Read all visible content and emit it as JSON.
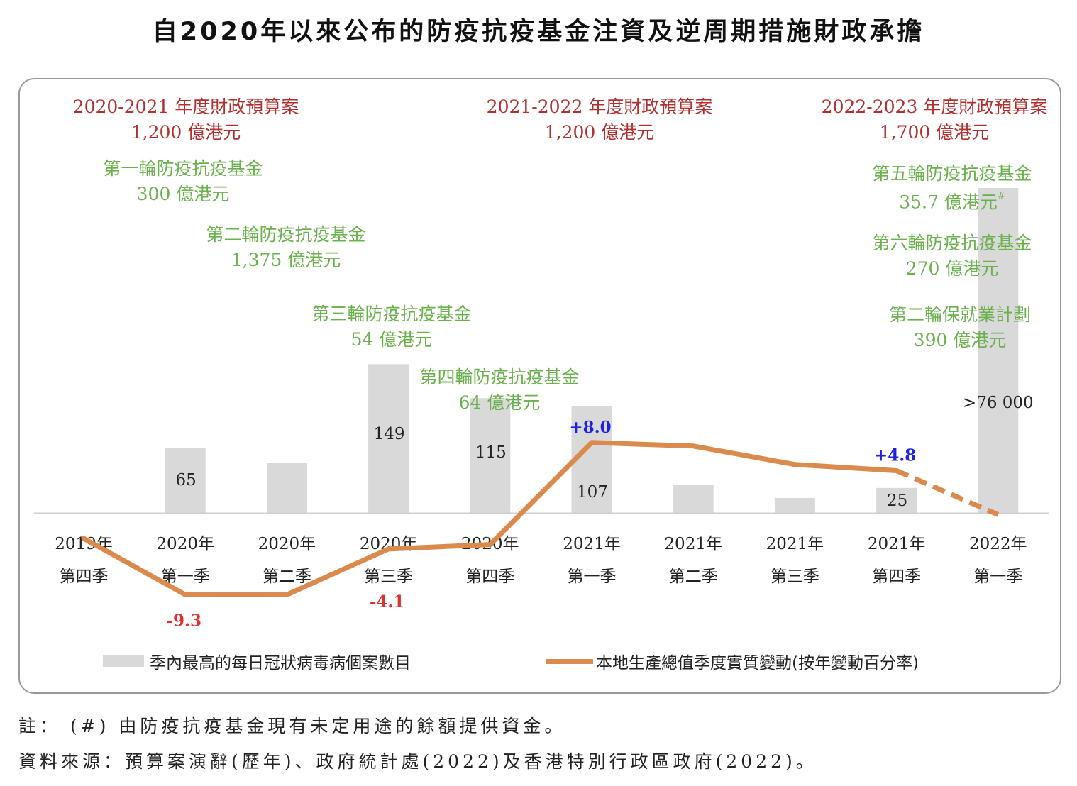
{
  "title": "自2020年以來公布的防疫抗疫基金注資及逆周期措施財政承擔",
  "annotations": {
    "budgets": [
      {
        "label": "2020-2021 年度財政預算案",
        "amount": "1,200 億港元"
      },
      {
        "label": "2021-2022 年度財政預算案",
        "amount": "1,200 億港元"
      },
      {
        "label": "2022-2023 年度財政預算案",
        "amount": "1,700 億港元"
      }
    ],
    "funds": [
      {
        "label": "第一輪防疫抗疫基金",
        "amount": "300 億港元"
      },
      {
        "label": "第二輪防疫抗疫基金",
        "amount": "1,375 億港元"
      },
      {
        "label": "第三輪防疫抗疫基金",
        "amount": "54 億港元"
      },
      {
        "label": "第四輪防疫抗疫基金",
        "amount": "64 億港元"
      },
      {
        "label": "第五輪防疫抗疫基金",
        "amount": "35.7 億港元",
        "mark": "#"
      },
      {
        "label": "第六輪防疫抗疫基金",
        "amount": "270 億港元"
      },
      {
        "label": "第二輪保就業計劃",
        "amount": "390 億港元"
      }
    ]
  },
  "chart_data": {
    "type": "bar+line",
    "categories": [
      [
        "2019年",
        "第四季"
      ],
      [
        "2020年",
        "第一季"
      ],
      [
        "2020年",
        "第二季"
      ],
      [
        "2020年",
        "第三季"
      ],
      [
        "2020年",
        "第四季"
      ],
      [
        "2021年",
        "第一季"
      ],
      [
        "2021年",
        "第二季"
      ],
      [
        "2021年",
        "第三季"
      ],
      [
        "2021年",
        "第四季"
      ],
      [
        "2022年",
        "第一季"
      ]
    ],
    "series": [
      {
        "name": "季內最高的每日冠狀病毒病個案數目",
        "kind": "bar",
        "values": [
          0,
          65,
          50,
          149,
          115,
          107,
          28,
          15,
          25,
          76000
        ],
        "value_labels": [
          "",
          "65",
          "",
          "149",
          "115",
          "107",
          "",
          "",
          "25",
          ">76 000"
        ],
        "axis_max": 160
      },
      {
        "name": "本地生產總值季度實質變動(按年變動百分率)",
        "kind": "line",
        "values": [
          -2.9,
          -9.3,
          -9.3,
          -4.1,
          -3.6,
          8.0,
          7.6,
          5.5,
          4.8,
          -0.2
        ],
        "dashed_from_index": 8,
        "labels": [
          {
            "index": 1,
            "text": "-9.3",
            "color": "#e03030"
          },
          {
            "index": 3,
            "text": "-4.1",
            "color": "#e03030"
          },
          {
            "index": 5,
            "text": "+8.0",
            "color": "#2020e0"
          },
          {
            "index": 8,
            "text": "+4.8",
            "color": "#2020e0"
          }
        ]
      }
    ],
    "colors": {
      "bar": "#d9d9d9",
      "line": "#d98a4c",
      "budget_text": "#b03030",
      "fund_text": "#6ab04c"
    }
  },
  "legend": {
    "bar_label": "季內最高的每日冠狀病毒病個案數目",
    "line_label": "本地生產總值季度實質變動(按年變動百分率)"
  },
  "notes": {
    "note": "註： (#) 由防疫抗疫基金現有未定用途的餘額提供資金。",
    "source": "資料來源：預算案演辭(歷年)、政府統計處(2022)及香港特別行政區政府(2022)。"
  }
}
